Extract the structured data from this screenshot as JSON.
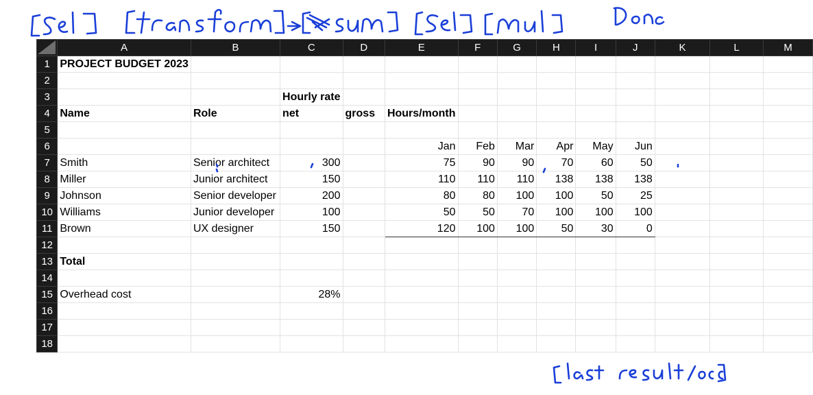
{
  "annotations": {
    "top": [
      "[Sel]",
      "[transform]",
      "->",
      "[sum]",
      "[Sel]",
      "[mul]",
      "Done"
    ],
    "bottom": "[last result/occ]"
  },
  "sheet": {
    "columns": [
      "A",
      "B",
      "C",
      "D",
      "E",
      "F",
      "G",
      "H",
      "I",
      "J",
      "K",
      "L",
      "M"
    ],
    "rows": [
      {
        "n": "1",
        "cells": [
          "PROJECT BUDGET 2023",
          "",
          "",
          "",
          "",
          "",
          "",
          "",
          "",
          "",
          "",
          "",
          ""
        ]
      },
      {
        "n": "2",
        "cells": [
          "",
          "",
          "",
          "",
          "",
          "",
          "",
          "",
          "",
          "",
          "",
          "",
          ""
        ]
      },
      {
        "n": "3",
        "cells": [
          "",
          "",
          "Hourly rate",
          "",
          "",
          "",
          "",
          "",
          "",
          "",
          "",
          "",
          ""
        ]
      },
      {
        "n": "4",
        "cells": [
          "Name",
          "Role",
          "net",
          "gross",
          "Hours/month",
          "",
          "",
          "",
          "",
          "",
          "",
          "",
          ""
        ]
      },
      {
        "n": "5",
        "cells": [
          "",
          "",
          "",
          "",
          "",
          "",
          "",
          "",
          "",
          "",
          "",
          "",
          ""
        ]
      },
      {
        "n": "6",
        "cells": [
          "",
          "",
          "",
          "",
          "Jan",
          "Feb",
          "Mar",
          "Apr",
          "May",
          "Jun",
          "",
          "",
          ""
        ]
      },
      {
        "n": "7",
        "cells": [
          "Smith",
          "Senior architect",
          "300",
          "",
          "75",
          "90",
          "90",
          "70",
          "60",
          "50",
          "",
          "",
          ""
        ]
      },
      {
        "n": "8",
        "cells": [
          "Miller",
          "Junior architect",
          "150",
          "",
          "110",
          "110",
          "110",
          "138",
          "138",
          "138",
          "",
          "",
          ""
        ]
      },
      {
        "n": "9",
        "cells": [
          "Johnson",
          "Senior developer",
          "200",
          "",
          "80",
          "80",
          "100",
          "100",
          "50",
          "25",
          "",
          "",
          ""
        ]
      },
      {
        "n": "10",
        "cells": [
          "Williams",
          "Junior developer",
          "100",
          "",
          "50",
          "50",
          "70",
          "100",
          "100",
          "100",
          "",
          "",
          ""
        ]
      },
      {
        "n": "11",
        "cells": [
          "Brown",
          "UX designer",
          "150",
          "",
          "120",
          "100",
          "100",
          "50",
          "30",
          "0",
          "",
          "",
          ""
        ]
      },
      {
        "n": "12",
        "cells": [
          "",
          "",
          "",
          "",
          "",
          "",
          "",
          "",
          "",
          "",
          "",
          "",
          ""
        ]
      },
      {
        "n": "13",
        "cells": [
          "Total",
          "",
          "",
          "",
          "",
          "",
          "",
          "",
          "",
          "",
          "",
          "",
          ""
        ]
      },
      {
        "n": "14",
        "cells": [
          "",
          "",
          "",
          "",
          "",
          "",
          "",
          "",
          "",
          "",
          "",
          "",
          ""
        ]
      },
      {
        "n": "15",
        "cells": [
          "Overhead cost",
          "",
          "28%",
          "",
          "",
          "",
          "",
          "",
          "",
          "",
          "",
          "",
          ""
        ]
      },
      {
        "n": "16",
        "cells": [
          "",
          "",
          "",
          "",
          "",
          "",
          "",
          "",
          "",
          "",
          "",
          "",
          ""
        ]
      },
      {
        "n": "17",
        "cells": [
          "",
          "",
          "",
          "",
          "",
          "",
          "",
          "",
          "",
          "",
          "",
          "",
          ""
        ]
      },
      {
        "n": "18",
        "cells": [
          "",
          "",
          "",
          "",
          "",
          "",
          "",
          "",
          "",
          "",
          "",
          "",
          ""
        ]
      }
    ]
  }
}
